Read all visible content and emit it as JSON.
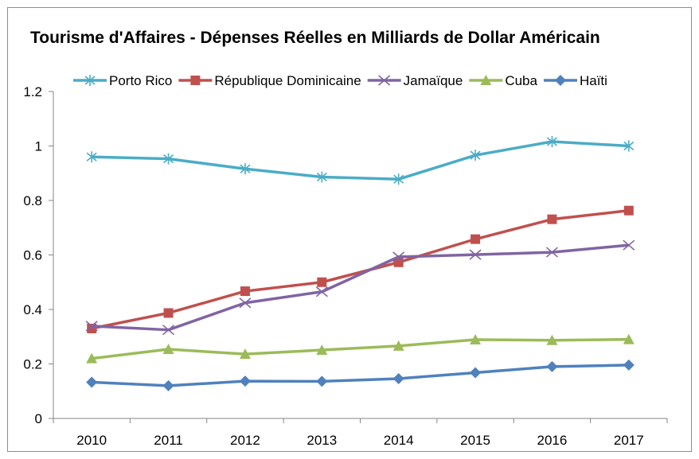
{
  "chart_data": {
    "type": "line",
    "title": "Tourisme d'Affaires - Dépenses Réelles en Milliards de Dollar Américain",
    "categories": [
      "2010",
      "2011",
      "2012",
      "2013",
      "2014",
      "2015",
      "2016",
      "2017"
    ],
    "ylim": [
      0,
      1.2
    ],
    "yticks": [
      "0",
      "0.2",
      "0.4",
      "0.6",
      "0.8",
      "1",
      "1.2"
    ],
    "grid": false,
    "legend_position": "top",
    "series": [
      {
        "name": "Porto Rico",
        "color": "#4bacc6",
        "marker": "asterisk",
        "values": [
          0.96,
          0.953,
          0.916,
          0.886,
          0.878,
          0.966,
          1.016,
          1.0
        ]
      },
      {
        "name": "République Dominicaine",
        "color": "#c0504d",
        "marker": "square",
        "values": [
          0.33,
          0.387,
          0.467,
          0.5,
          0.573,
          0.658,
          0.731,
          0.763
        ]
      },
      {
        "name": "Jamaïque",
        "color": "#8064a2",
        "marker": "x",
        "values": [
          0.339,
          0.325,
          0.424,
          0.465,
          0.593,
          0.601,
          0.61,
          0.636
        ]
      },
      {
        "name": "Cuba",
        "color": "#9bbb59",
        "marker": "triangle",
        "values": [
          0.22,
          0.254,
          0.236,
          0.251,
          0.266,
          0.289,
          0.287,
          0.29
        ]
      },
      {
        "name": "Haïti",
        "color": "#4f81bd",
        "marker": "diamond",
        "values": [
          0.133,
          0.12,
          0.137,
          0.136,
          0.146,
          0.168,
          0.19,
          0.196
        ]
      }
    ]
  }
}
